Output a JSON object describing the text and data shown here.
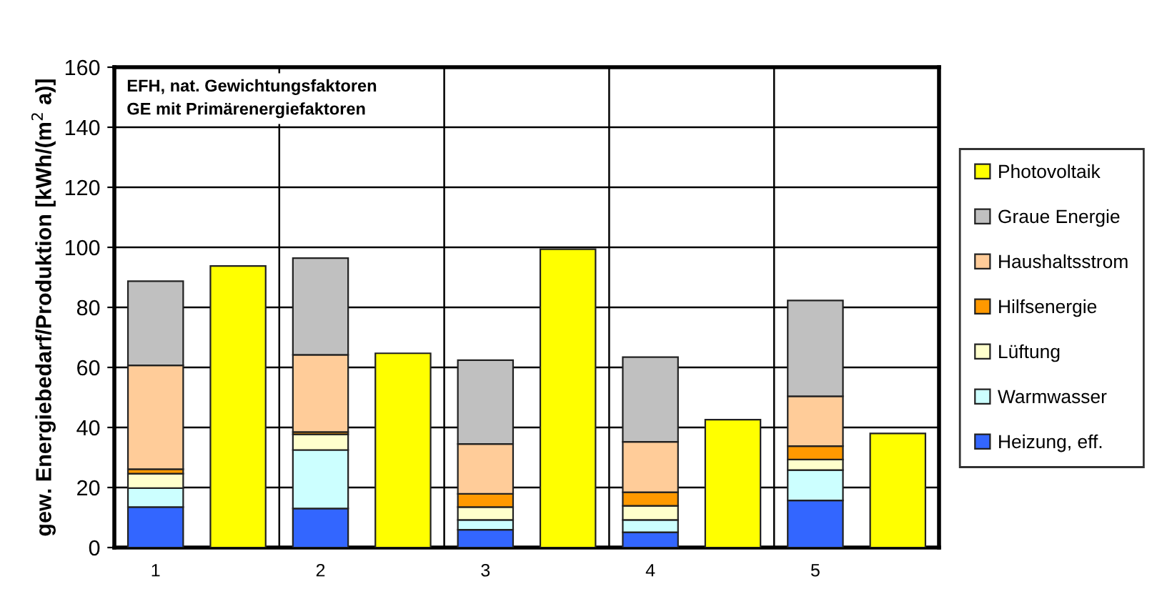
{
  "chart_data": {
    "type": "bar",
    "stacked": true,
    "categories": [
      "1",
      null,
      "2",
      null,
      "3",
      null,
      "4",
      null,
      "5",
      null
    ],
    "ylabel": "gew. Energiebedarf/Produktion [kWh/(m$^{2}$ a)]",
    "ylim": [
      0,
      160
    ],
    "yticks": [
      0,
      20,
      40,
      60,
      80,
      100,
      120,
      140,
      160
    ],
    "grid": true,
    "legend": "right",
    "annotations": [
      "EFH, nat. Gewichtungsfaktoren\nGE mit Primärenergiefaktoren"
    ],
    "series": [
      {
        "name": "Heizung, eff.",
        "color": "#3366ff",
        "values": [
          13.5,
          null,
          13,
          null,
          5.9,
          null,
          5.1,
          null,
          15.7,
          null
        ]
      },
      {
        "name": "Warmwasser",
        "color": "#ccffff",
        "values": [
          6.3,
          null,
          19.5,
          null,
          3.3,
          null,
          4.1,
          null,
          10.1,
          null
        ]
      },
      {
        "name": "Lüftung",
        "color": "#ffffcc",
        "values": [
          4.8,
          null,
          5.2,
          null,
          4.3,
          null,
          4.7,
          null,
          3.5,
          null
        ]
      },
      {
        "name": "Hilfsenergie",
        "color": "#ff9900",
        "values": [
          1.5,
          null,
          0.8,
          null,
          4.4,
          null,
          4.5,
          null,
          4.5,
          null
        ]
      },
      {
        "name": "Haushaltsstrom",
        "color": "#ffcc99",
        "values": [
          34.6,
          null,
          25.7,
          null,
          16.6,
          null,
          16.8,
          null,
          16.6,
          null
        ]
      },
      {
        "name": "Graue Energie",
        "color": "#c0c0c0",
        "values": [
          28,
          null,
          32.2,
          null,
          27.9,
          null,
          28.2,
          null,
          31.9,
          null
        ]
      },
      {
        "name": "Photovoltaik",
        "color": "#ffff00",
        "values": [
          null,
          93.8,
          null,
          64.7,
          null,
          99.4,
          null,
          42.6,
          null,
          38
        ]
      }
    ]
  }
}
